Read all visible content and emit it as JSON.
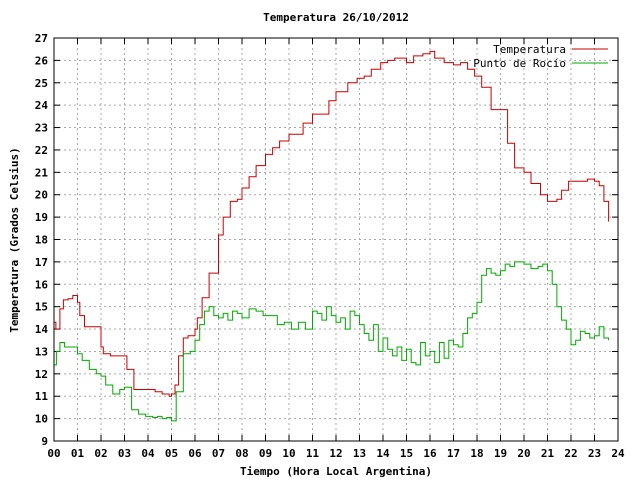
{
  "chart_data": {
    "type": "line",
    "title": "Temperatura 26/10/2012",
    "xlabel": "Tiempo (Hora Local Argentina)",
    "ylabel": "Temperatura (Grados Celsius)",
    "xlim": [
      0,
      24
    ],
    "ylim": [
      9,
      27
    ],
    "xticks": [
      "00",
      "01",
      "02",
      "03",
      "04",
      "05",
      "06",
      "07",
      "08",
      "09",
      "10",
      "11",
      "12",
      "13",
      "14",
      "15",
      "16",
      "17",
      "18",
      "19",
      "20",
      "21",
      "22",
      "23",
      "24"
    ],
    "yticks": [
      9,
      10,
      11,
      12,
      13,
      14,
      15,
      16,
      17,
      18,
      19,
      20,
      21,
      22,
      23,
      24,
      25,
      26,
      27
    ],
    "grid": true,
    "legend_position": "top-right",
    "series": [
      {
        "name": "Temperatura",
        "color": "#cc0000",
        "x": [
          0.0,
          0.08,
          0.25,
          0.4,
          0.6,
          0.8,
          1.0,
          1.1,
          1.3,
          1.6,
          2.0,
          2.1,
          2.4,
          2.8,
          3.1,
          3.4,
          3.6,
          3.9,
          4.3,
          4.6,
          4.9,
          5.0,
          5.15,
          5.3,
          5.5,
          5.7,
          6.0,
          6.1,
          6.3,
          6.6,
          6.8,
          7.0,
          7.2,
          7.5,
          7.8,
          8.0,
          8.3,
          8.6,
          9.0,
          9.3,
          9.6,
          10.0,
          10.3,
          10.6,
          11.0,
          11.3,
          11.7,
          12.0,
          12.2,
          12.5,
          12.9,
          13.2,
          13.5,
          13.9,
          14.2,
          14.5,
          15.0,
          15.3,
          15.7,
          16.0,
          16.2,
          16.6,
          17.0,
          17.3,
          17.6,
          17.9,
          18.2,
          18.6,
          19.0,
          19.3,
          19.6,
          20.0,
          20.3,
          20.7,
          21.0,
          21.4,
          21.6,
          21.9,
          22.3,
          22.7,
          23.0,
          23.2,
          23.4,
          23.6
        ],
        "values": [
          14.3,
          14.0,
          14.9,
          15.3,
          15.35,
          15.5,
          15.2,
          14.6,
          14.1,
          14.1,
          13.2,
          12.9,
          12.8,
          12.8,
          12.2,
          11.3,
          11.3,
          11.3,
          11.2,
          11.1,
          11.0,
          11.1,
          11.5,
          12.8,
          13.6,
          13.7,
          14.0,
          14.5,
          15.4,
          16.5,
          16.5,
          18.2,
          19.0,
          19.7,
          19.8,
          20.3,
          20.8,
          21.3,
          21.8,
          22.1,
          22.4,
          22.7,
          22.7,
          23.2,
          23.6,
          23.6,
          24.2,
          24.6,
          24.6,
          25.0,
          25.2,
          25.3,
          25.6,
          25.9,
          26.0,
          26.1,
          25.9,
          26.2,
          26.3,
          26.4,
          26.1,
          25.9,
          25.8,
          25.9,
          25.6,
          25.3,
          24.8,
          23.8,
          23.8,
          22.3,
          21.2,
          21.0,
          20.5,
          20.0,
          19.7,
          19.8,
          20.2,
          20.6,
          20.6,
          20.7,
          20.6,
          20.4,
          19.7,
          18.8
        ]
      },
      {
        "name": "Punto de Rocío",
        "color": "#00aa00",
        "x": [
          0.0,
          0.1,
          0.25,
          0.45,
          0.6,
          0.8,
          1.0,
          1.2,
          1.5,
          1.8,
          2.0,
          2.2,
          2.5,
          2.8,
          3.0,
          3.3,
          3.6,
          3.9,
          4.0,
          4.2,
          4.4,
          4.6,
          4.8,
          5.0,
          5.2,
          5.5,
          5.8,
          6.0,
          6.2,
          6.4,
          6.6,
          6.8,
          7.0,
          7.2,
          7.4,
          7.6,
          7.8,
          8.0,
          8.3,
          8.6,
          8.9,
          9.2,
          9.5,
          9.8,
          10.1,
          10.4,
          10.7,
          11.0,
          11.2,
          11.4,
          11.6,
          11.8,
          12.0,
          12.2,
          12.4,
          12.6,
          12.8,
          13.0,
          13.2,
          13.4,
          13.6,
          13.8,
          14.0,
          14.2,
          14.4,
          14.6,
          14.8,
          15.0,
          15.2,
          15.4,
          15.6,
          15.8,
          16.0,
          16.2,
          16.4,
          16.6,
          16.8,
          17.0,
          17.2,
          17.4,
          17.6,
          17.8,
          18.0,
          18.2,
          18.4,
          18.6,
          18.8,
          19.0,
          19.2,
          19.4,
          19.6,
          19.8,
          20.0,
          20.3,
          20.6,
          20.8,
          21.0,
          21.2,
          21.4,
          21.6,
          21.8,
          22.0,
          22.2,
          22.4,
          22.6,
          22.8,
          23.0,
          23.2,
          23.4,
          23.6
        ],
        "values": [
          12.4,
          13.0,
          13.4,
          13.2,
          13.2,
          13.2,
          12.9,
          12.6,
          12.2,
          12.0,
          11.9,
          11.5,
          11.1,
          11.3,
          11.4,
          10.4,
          10.2,
          10.1,
          10.1,
          10.05,
          10.1,
          10.0,
          10.05,
          9.9,
          11.2,
          12.9,
          13.0,
          13.5,
          14.2,
          14.8,
          15.0,
          14.6,
          14.5,
          14.7,
          14.4,
          14.8,
          14.7,
          14.5,
          14.9,
          14.8,
          14.6,
          14.6,
          14.2,
          14.3,
          14.0,
          14.3,
          14.0,
          14.8,
          14.7,
          14.4,
          15.0,
          14.6,
          14.3,
          14.5,
          14.0,
          14.8,
          14.6,
          14.2,
          13.8,
          13.5,
          14.2,
          13.0,
          13.6,
          13.1,
          12.8,
          13.2,
          12.6,
          13.1,
          12.5,
          12.4,
          13.4,
          12.8,
          13.0,
          12.5,
          13.4,
          12.7,
          13.5,
          13.3,
          13.2,
          13.8,
          14.5,
          14.7,
          15.2,
          16.4,
          16.7,
          16.5,
          16.4,
          16.6,
          16.9,
          16.8,
          17.0,
          17.0,
          16.9,
          16.7,
          16.8,
          16.9,
          16.6,
          16.0,
          15.0,
          14.4,
          14.0,
          13.3,
          13.5,
          13.9,
          13.8,
          13.6,
          13.7,
          14.1,
          13.6,
          13.5
        ]
      }
    ]
  }
}
